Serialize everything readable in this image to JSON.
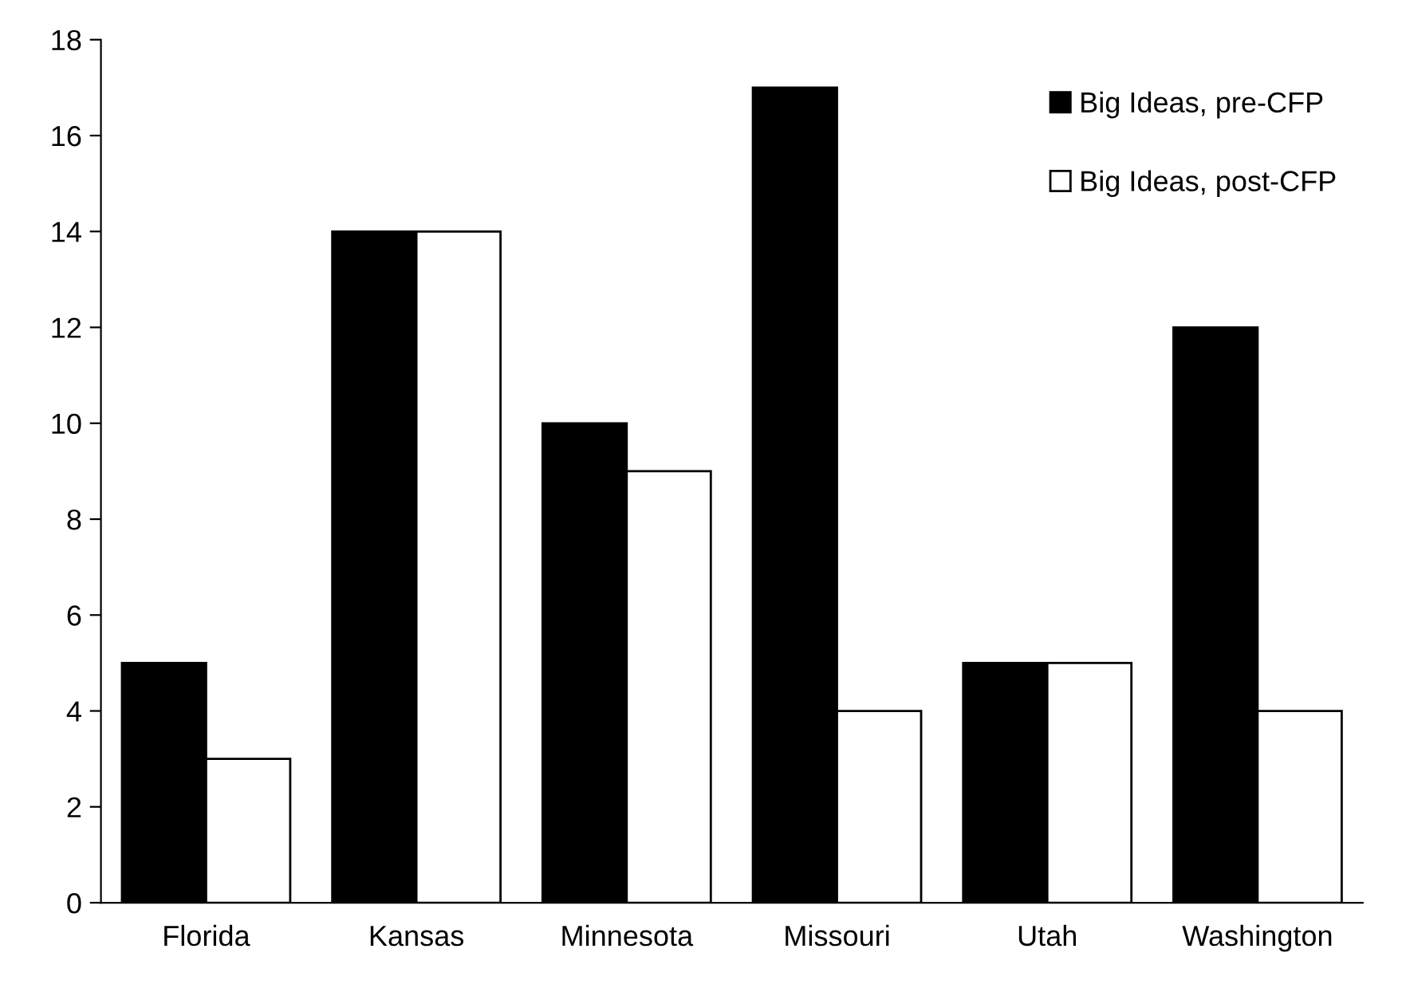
{
  "chart_data": {
    "type": "bar",
    "categories": [
      "Florida",
      "Kansas",
      "Minnesota",
      "Missouri",
      "Utah",
      "Washington"
    ],
    "series": [
      {
        "name": "Big Ideas, pre-CFP",
        "color": "#000000",
        "values": [
          5,
          14,
          10,
          17,
          5,
          12
        ]
      },
      {
        "name": "Big Ideas, post-CFP",
        "color": "#ffffff",
        "values": [
          3,
          14,
          9,
          4,
          5,
          4
        ]
      }
    ],
    "ylim": [
      0,
      18
    ],
    "yticks": [
      0,
      2,
      4,
      6,
      8,
      10,
      12,
      14,
      16,
      18
    ],
    "legend": "top right",
    "grid": false
  }
}
